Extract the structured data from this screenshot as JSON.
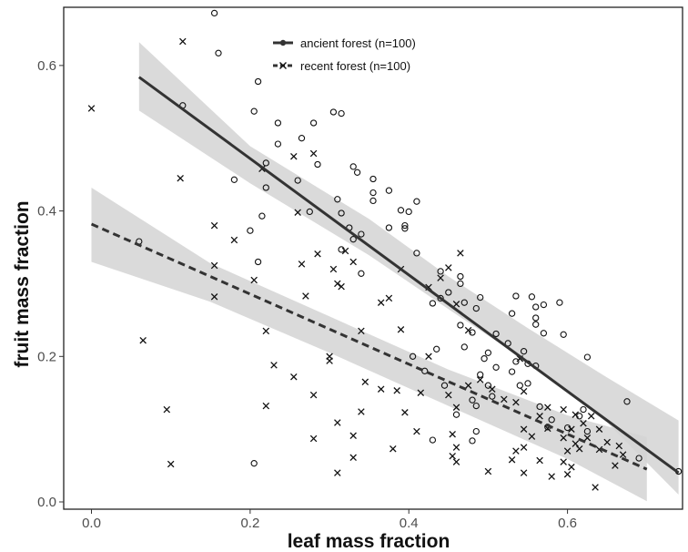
{
  "chart_data": {
    "type": "scatter",
    "title": "",
    "xlabel": "leaf mass fraction",
    "ylabel": "fruit mass fraction",
    "xlim": [
      -0.035,
      0.745
    ],
    "ylim": [
      -0.01,
      0.68
    ],
    "x_ticks": [
      {
        "value": 0.0,
        "label": "0.0"
      },
      {
        "value": 0.2,
        "label": "0.2"
      },
      {
        "value": 0.4,
        "label": "0.4"
      },
      {
        "value": 0.6,
        "label": "0.6"
      }
    ],
    "y_ticks": [
      {
        "value": 0.0,
        "label": "0.0"
      },
      {
        "value": 0.2,
        "label": "0.2"
      },
      {
        "value": 0.4,
        "label": "0.4"
      },
      {
        "value": 0.6,
        "label": "0.6"
      }
    ],
    "grid": false,
    "legend_position": "top-center",
    "colors": {
      "points": "#111111",
      "lines": "#333333",
      "band": "#d3d3d3",
      "frame": "#222222"
    },
    "series": [
      {
        "name": "ancient forest (n=100)",
        "marker": "circle",
        "line": "solid",
        "fit": {
          "x": [
            0.06,
            0.74
          ],
          "y": [
            0.584,
            0.04
          ]
        },
        "ci_band": {
          "x": [
            0.06,
            0.2,
            0.35,
            0.45,
            0.55,
            0.65,
            0.74
          ],
          "upper": [
            0.632,
            0.489,
            0.389,
            0.31,
            0.239,
            0.171,
            0.112
          ],
          "lower": [
            0.538,
            0.438,
            0.339,
            0.265,
            0.192,
            0.109,
            0.01
          ]
        },
        "points": [
          [
            0.155,
            0.672
          ],
          [
            0.16,
            0.617
          ],
          [
            0.21,
            0.578
          ],
          [
            0.115,
            0.545
          ],
          [
            0.205,
            0.537
          ],
          [
            0.305,
            0.536
          ],
          [
            0.315,
            0.534
          ],
          [
            0.235,
            0.521
          ],
          [
            0.28,
            0.521
          ],
          [
            0.265,
            0.5
          ],
          [
            0.235,
            0.492
          ],
          [
            0.285,
            0.464
          ],
          [
            0.33,
            0.461
          ],
          [
            0.335,
            0.453
          ],
          [
            0.22,
            0.466
          ],
          [
            0.18,
            0.443
          ],
          [
            0.26,
            0.442
          ],
          [
            0.355,
            0.444
          ],
          [
            0.22,
            0.432
          ],
          [
            0.355,
            0.425
          ],
          [
            0.375,
            0.428
          ],
          [
            0.355,
            0.414
          ],
          [
            0.41,
            0.413
          ],
          [
            0.31,
            0.416
          ],
          [
            0.39,
            0.401
          ],
          [
            0.275,
            0.399
          ],
          [
            0.315,
            0.397
          ],
          [
            0.4,
            0.399
          ],
          [
            0.215,
            0.393
          ],
          [
            0.395,
            0.38
          ],
          [
            0.395,
            0.376
          ],
          [
            0.325,
            0.377
          ],
          [
            0.375,
            0.377
          ],
          [
            0.2,
            0.373
          ],
          [
            0.34,
            0.368
          ],
          [
            0.33,
            0.361
          ],
          [
            0.06,
            0.358
          ],
          [
            0.315,
            0.347
          ],
          [
            0.41,
            0.342
          ],
          [
            0.21,
            0.33
          ],
          [
            0.34,
            0.314
          ],
          [
            0.44,
            0.317
          ],
          [
            0.465,
            0.31
          ],
          [
            0.465,
            0.3
          ],
          [
            0.45,
            0.288
          ],
          [
            0.49,
            0.281
          ],
          [
            0.47,
            0.274
          ],
          [
            0.43,
            0.273
          ],
          [
            0.44,
            0.28
          ],
          [
            0.535,
            0.283
          ],
          [
            0.555,
            0.282
          ],
          [
            0.485,
            0.266
          ],
          [
            0.56,
            0.268
          ],
          [
            0.57,
            0.271
          ],
          [
            0.59,
            0.274
          ],
          [
            0.53,
            0.259
          ],
          [
            0.56,
            0.253
          ],
          [
            0.56,
            0.244
          ],
          [
            0.465,
            0.243
          ],
          [
            0.48,
            0.233
          ],
          [
            0.51,
            0.231
          ],
          [
            0.57,
            0.232
          ],
          [
            0.595,
            0.23
          ],
          [
            0.525,
            0.218
          ],
          [
            0.435,
            0.21
          ],
          [
            0.47,
            0.213
          ],
          [
            0.5,
            0.205
          ],
          [
            0.545,
            0.207
          ],
          [
            0.495,
            0.197
          ],
          [
            0.405,
            0.2
          ],
          [
            0.625,
            0.199
          ],
          [
            0.535,
            0.193
          ],
          [
            0.55,
            0.19
          ],
          [
            0.42,
            0.18
          ],
          [
            0.51,
            0.185
          ],
          [
            0.56,
            0.187
          ],
          [
            0.53,
            0.179
          ],
          [
            0.49,
            0.175
          ],
          [
            0.5,
            0.16
          ],
          [
            0.54,
            0.16
          ],
          [
            0.55,
            0.163
          ],
          [
            0.445,
            0.16
          ],
          [
            0.505,
            0.145
          ],
          [
            0.48,
            0.14
          ],
          [
            0.565,
            0.131
          ],
          [
            0.485,
            0.132
          ],
          [
            0.62,
            0.127
          ],
          [
            0.675,
            0.138
          ],
          [
            0.46,
            0.12
          ],
          [
            0.58,
            0.113
          ],
          [
            0.615,
            0.118
          ],
          [
            0.575,
            0.103
          ],
          [
            0.6,
            0.102
          ],
          [
            0.625,
            0.097
          ],
          [
            0.485,
            0.097
          ],
          [
            0.43,
            0.085
          ],
          [
            0.48,
            0.084
          ],
          [
            0.69,
            0.06
          ],
          [
            0.74,
            0.042
          ],
          [
            0.205,
            0.053
          ]
        ]
      },
      {
        "name": "recent forest (n=100)",
        "marker": "x",
        "line": "dashed",
        "fit": {
          "x": [
            0.0,
            0.7
          ],
          "y": [
            0.382,
            0.045
          ]
        },
        "ci_band": {
          "x": [
            0.0,
            0.15,
            0.3,
            0.45,
            0.6,
            0.7
          ],
          "upper": [
            0.432,
            0.328,
            0.255,
            0.182,
            0.119,
            0.089
          ],
          "lower": [
            0.33,
            0.275,
            0.205,
            0.132,
            0.059,
            0.001
          ]
        },
        "points": [
          [
            0.115,
            0.633
          ],
          [
            0.0,
            0.541
          ],
          [
            0.112,
            0.445
          ],
          [
            0.28,
            0.479
          ],
          [
            0.255,
            0.475
          ],
          [
            0.215,
            0.458
          ],
          [
            0.155,
            0.38
          ],
          [
            0.26,
            0.398
          ],
          [
            0.18,
            0.36
          ],
          [
            0.285,
            0.341
          ],
          [
            0.32,
            0.345
          ],
          [
            0.33,
            0.33
          ],
          [
            0.155,
            0.325
          ],
          [
            0.265,
            0.327
          ],
          [
            0.305,
            0.32
          ],
          [
            0.39,
            0.32
          ],
          [
            0.205,
            0.305
          ],
          [
            0.31,
            0.3
          ],
          [
            0.315,
            0.296
          ],
          [
            0.44,
            0.308
          ],
          [
            0.425,
            0.295
          ],
          [
            0.45,
            0.322
          ],
          [
            0.465,
            0.342
          ],
          [
            0.375,
            0.28
          ],
          [
            0.155,
            0.282
          ],
          [
            0.27,
            0.283
          ],
          [
            0.365,
            0.274
          ],
          [
            0.46,
            0.272
          ],
          [
            0.22,
            0.235
          ],
          [
            0.34,
            0.235
          ],
          [
            0.475,
            0.236
          ],
          [
            0.39,
            0.237
          ],
          [
            0.065,
            0.222
          ],
          [
            0.3,
            0.2
          ],
          [
            0.425,
            0.2
          ],
          [
            0.54,
            0.197
          ],
          [
            0.3,
            0.194
          ],
          [
            0.23,
            0.188
          ],
          [
            0.255,
            0.172
          ],
          [
            0.345,
            0.165
          ],
          [
            0.365,
            0.155
          ],
          [
            0.385,
            0.153
          ],
          [
            0.415,
            0.15
          ],
          [
            0.45,
            0.147
          ],
          [
            0.475,
            0.16
          ],
          [
            0.49,
            0.168
          ],
          [
            0.505,
            0.155
          ],
          [
            0.545,
            0.152
          ],
          [
            0.28,
            0.147
          ],
          [
            0.52,
            0.141
          ],
          [
            0.46,
            0.13
          ],
          [
            0.535,
            0.137
          ],
          [
            0.575,
            0.13
          ],
          [
            0.595,
            0.127
          ],
          [
            0.63,
            0.118
          ],
          [
            0.22,
            0.132
          ],
          [
            0.34,
            0.124
          ],
          [
            0.395,
            0.123
          ],
          [
            0.565,
            0.118
          ],
          [
            0.61,
            0.12
          ],
          [
            0.62,
            0.108
          ],
          [
            0.095,
            0.127
          ],
          [
            0.31,
            0.109
          ],
          [
            0.545,
            0.1
          ],
          [
            0.575,
            0.101
          ],
          [
            0.605,
            0.1
          ],
          [
            0.64,
            0.1
          ],
          [
            0.555,
            0.09
          ],
          [
            0.33,
            0.091
          ],
          [
            0.41,
            0.097
          ],
          [
            0.455,
            0.093
          ],
          [
            0.595,
            0.088
          ],
          [
            0.28,
            0.087
          ],
          [
            0.61,
            0.08
          ],
          [
            0.545,
            0.075
          ],
          [
            0.38,
            0.073
          ],
          [
            0.46,
            0.075
          ],
          [
            0.535,
            0.07
          ],
          [
            0.6,
            0.07
          ],
          [
            0.64,
            0.072
          ],
          [
            0.33,
            0.061
          ],
          [
            0.455,
            0.063
          ],
          [
            0.53,
            0.058
          ],
          [
            0.565,
            0.057
          ],
          [
            0.1,
            0.052
          ],
          [
            0.46,
            0.055
          ],
          [
            0.595,
            0.055
          ],
          [
            0.66,
            0.05
          ],
          [
            0.605,
            0.048
          ],
          [
            0.31,
            0.04
          ],
          [
            0.5,
            0.042
          ],
          [
            0.545,
            0.04
          ],
          [
            0.6,
            0.038
          ],
          [
            0.58,
            0.035
          ],
          [
            0.635,
            0.02
          ],
          [
            0.615,
            0.073
          ],
          [
            0.625,
            0.088
          ],
          [
            0.65,
            0.082
          ],
          [
            0.665,
            0.077
          ],
          [
            0.67,
            0.065
          ]
        ]
      }
    ]
  }
}
